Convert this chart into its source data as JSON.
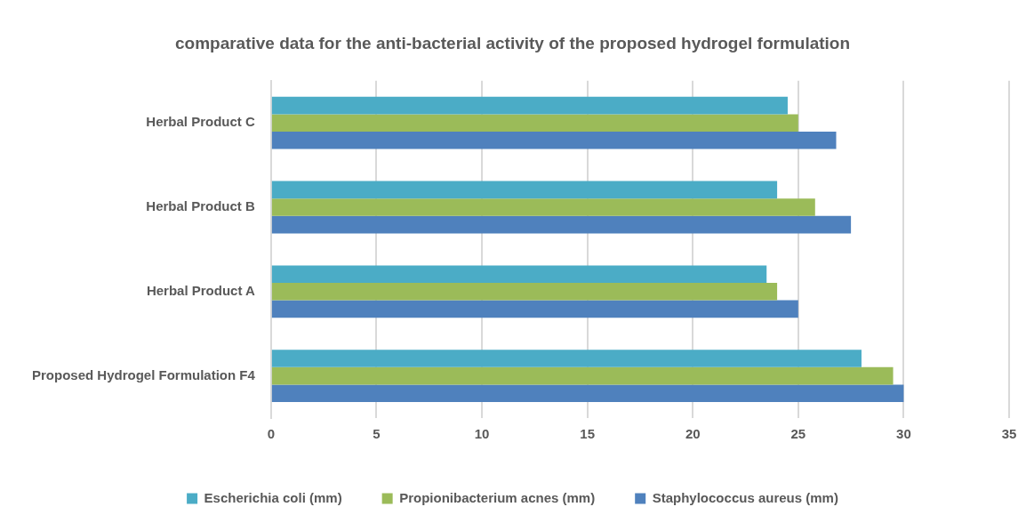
{
  "chart_data": {
    "type": "bar",
    "orientation": "horizontal",
    "title": "comparative data for the anti-bacterial activity of the proposed hydrogel formulation",
    "categories": [
      "Herbal Product C",
      "Herbal Product B",
      "Herbal Product A",
      "Proposed Hydrogel Formulation F4"
    ],
    "series": [
      {
        "name": "Escherichia coli (mm)",
        "color": "#4bacc6",
        "values": [
          24.5,
          24,
          23.5,
          28
        ]
      },
      {
        "name": "Propionibacterium acnes (mm)",
        "color": "#9bbb59",
        "values": [
          25,
          25.8,
          24,
          29.5
        ]
      },
      {
        "name": "Staphylococcus aureus (mm)",
        "color": "#4f81bd",
        "values": [
          26.8,
          27.5,
          25,
          30
        ]
      }
    ],
    "xlim": [
      0,
      35
    ],
    "xticks": [
      0,
      5,
      10,
      15,
      20,
      25,
      30,
      35
    ],
    "grid": "x",
    "legend": "bottom"
  }
}
